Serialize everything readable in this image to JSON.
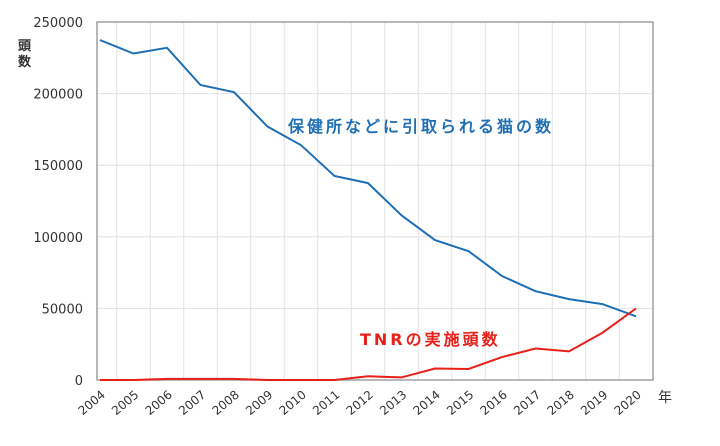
{
  "chart_data": {
    "type": "line",
    "title": "",
    "xlabel": "年",
    "ylabel": "頭数",
    "ylim": [
      0,
      250000
    ],
    "yticks": [
      0,
      50000,
      100000,
      150000,
      200000,
      250000
    ],
    "ytick_labels": [
      "0",
      "50000",
      "100000",
      "150000",
      "200000",
      "250000"
    ],
    "x": [
      "2004",
      "2005",
      "2006",
      "2007",
      "2008",
      "2009",
      "2010",
      "2011",
      "2012",
      "2013",
      "2014",
      "2015",
      "2016",
      "2017",
      "2018",
      "2019",
      "2020"
    ],
    "grid": true,
    "series": [
      {
        "name": "保健所などに引取られる猫の数",
        "color": "#1f6fb4",
        "values": [
          237400,
          228000,
          232000,
          206000,
          201000,
          177000,
          164000,
          142500,
          137500,
          115000,
          97700,
          90000,
          72600,
          62000,
          56500,
          53000,
          44500
        ]
      },
      {
        "name": "TNRの実施頭数",
        "color": "#e8201a",
        "values": [
          0,
          0,
          800,
          800,
          800,
          0,
          0,
          0,
          2600,
          1800,
          8000,
          7700,
          16000,
          22000,
          20000,
          33000,
          50000
        ]
      }
    ]
  }
}
